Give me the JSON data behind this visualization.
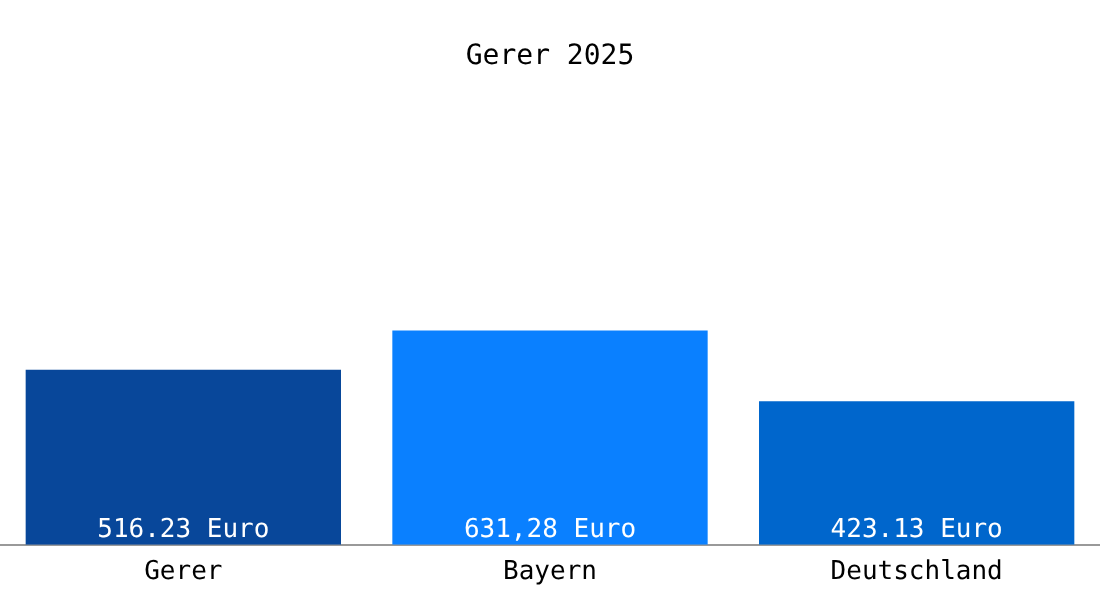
{
  "chart_data": {
    "type": "bar",
    "title": "Gerer 2025",
    "categories": [
      "Gerer",
      "Bayern",
      "Deutschland"
    ],
    "values": [
      516.23,
      631.28,
      423.13
    ],
    "colors": [
      "#08479a",
      "#0a80ff",
      "#0066cc"
    ],
    "value_labels": [
      "516.23 Euro",
      "631,28 Euro",
      "423.13 Euro"
    ],
    "grid": false,
    "legend": false
  }
}
